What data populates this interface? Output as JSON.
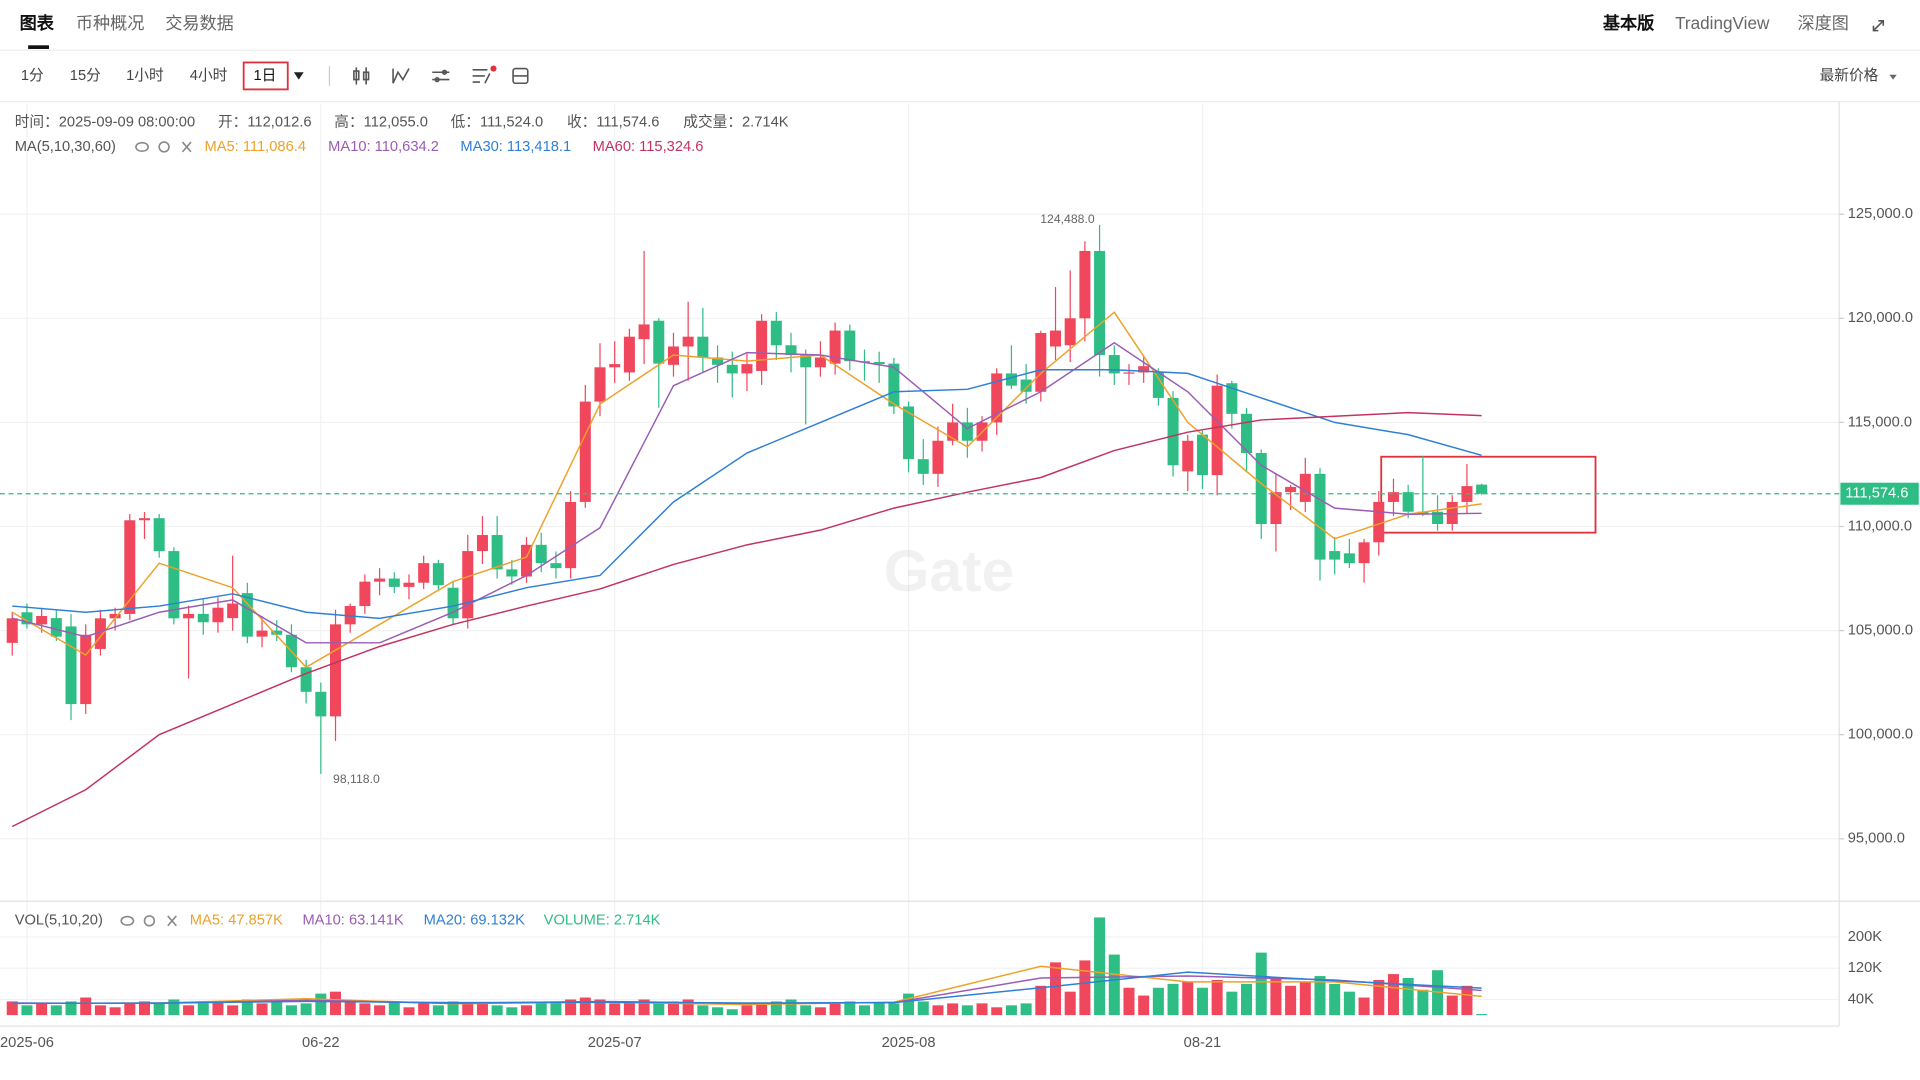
{
  "tabs": [
    "图表",
    "币种概况",
    "交易数据"
  ],
  "views": [
    "基本版",
    "TradingView",
    "深度图"
  ],
  "intervals": [
    "1分",
    "15分",
    "1小时",
    "4小时",
    "1日"
  ],
  "price_mode": "最新价格",
  "chart_data": {
    "type": "candlestick",
    "info": [
      "时间：2025-09-09 08:00:00",
      "开：112,012.6",
      "高：112,055.0",
      "低：111,524.0",
      "收：111,574.6",
      "成交量：2.714K"
    ],
    "indicator": "MA(5,10,30,60)",
    "categories": [
      null,
      "2025-06",
      null,
      null,
      null,
      null,
      null,
      null,
      null,
      null,
      null,
      null,
      null,
      null,
      null,
      null,
      null,
      null,
      null,
      null,
      null,
      "06-22",
      null,
      null,
      null,
      null,
      null,
      null,
      null,
      null,
      null,
      null,
      null,
      null,
      null,
      null,
      null,
      null,
      null,
      null,
      null,
      "2025-07",
      null,
      null,
      null,
      null,
      null,
      null,
      null,
      null,
      null,
      null,
      null,
      null,
      null,
      null,
      null,
      null,
      null,
      null,
      null,
      "2025-08",
      null,
      null,
      null,
      null,
      null,
      null,
      null,
      null,
      null,
      null,
      null,
      null,
      null,
      null,
      null,
      null,
      null,
      null,
      null,
      "08-21",
      null,
      null,
      null,
      null,
      null,
      null,
      null,
      null,
      null,
      null,
      null,
      null,
      null,
      null,
      null,
      null,
      null,
      null,
      null
    ],
    "ohlc": [
      [
        104410,
        105900,
        103800,
        105590
      ],
      [
        105880,
        106300,
        105100,
        105300
      ],
      [
        105300,
        106100,
        104900,
        105700
      ],
      [
        105600,
        106000,
        104500,
        104710
      ],
      [
        105200,
        105800,
        100700,
        101470
      ],
      [
        101470,
        105300,
        101000,
        104800
      ],
      [
        104120,
        106000,
        103800,
        105590
      ],
      [
        105590,
        106100,
        105000,
        105800
      ],
      [
        105800,
        110600,
        105500,
        110300
      ],
      [
        110300,
        110700,
        109400,
        110400
      ],
      [
        110400,
        110600,
        108500,
        108820
      ],
      [
        108820,
        109000,
        105300,
        105590
      ],
      [
        105590,
        106200,
        102700,
        105800
      ],
      [
        105800,
        106500,
        104800,
        105400
      ],
      [
        105400,
        106600,
        104900,
        106100
      ],
      [
        105600,
        108600,
        105000,
        106300
      ],
      [
        106800,
        107300,
        104400,
        104710
      ],
      [
        104710,
        105700,
        104200,
        105000
      ],
      [
        105000,
        105500,
        104500,
        104800
      ],
      [
        104800,
        105300,
        103000,
        103240
      ],
      [
        103240,
        103600,
        101500,
        102060
      ],
      [
        102060,
        102500,
        98118,
        100880
      ],
      [
        100880,
        106000,
        99700,
        105300
      ],
      [
        105300,
        106300,
        104900,
        106180
      ],
      [
        106180,
        107700,
        105800,
        107350
      ],
      [
        107350,
        108000,
        106700,
        107500
      ],
      [
        107500,
        107800,
        106800,
        107100
      ],
      [
        107100,
        107700,
        106500,
        107300
      ],
      [
        107300,
        108600,
        107000,
        108240
      ],
      [
        108240,
        108400,
        106900,
        107180
      ],
      [
        107060,
        107400,
        105300,
        105590
      ],
      [
        105590,
        109600,
        105100,
        108820
      ],
      [
        108820,
        110500,
        108200,
        109590
      ],
      [
        109590,
        110500,
        107500,
        107940
      ],
      [
        107940,
        108400,
        107200,
        107600
      ],
      [
        107600,
        109500,
        107300,
        109120
      ],
      [
        109120,
        109700,
        107800,
        108240
      ],
      [
        108240,
        108800,
        107500,
        108000
      ],
      [
        108000,
        111700,
        107500,
        111180
      ],
      [
        111180,
        116800,
        110900,
        116000
      ],
      [
        116000,
        118800,
        115300,
        117647
      ],
      [
        117647,
        118900,
        116900,
        117800
      ],
      [
        117400,
        119500,
        117000,
        119118
      ],
      [
        119000,
        123235,
        117800,
        119706
      ],
      [
        119883,
        120000,
        115700,
        117824
      ],
      [
        117765,
        119300,
        117200,
        118647
      ],
      [
        118647,
        120800,
        117000,
        119118
      ],
      [
        119118,
        120500,
        117400,
        118118
      ],
      [
        118118,
        118700,
        116900,
        117765
      ],
      [
        117765,
        118400,
        116200,
        117353
      ],
      [
        117353,
        118300,
        116500,
        117800
      ],
      [
        117471,
        120200,
        116800,
        119883
      ],
      [
        119883,
        120300,
        118000,
        118706
      ],
      [
        118706,
        119300,
        117400,
        118235
      ],
      [
        118235,
        118500,
        114900,
        117647
      ],
      [
        117647,
        118900,
        117200,
        118118
      ],
      [
        117824,
        119800,
        117300,
        119412
      ],
      [
        119412,
        119700,
        117500,
        117941
      ],
      [
        117941,
        118500,
        117000,
        117900
      ],
      [
        117900,
        118400,
        116900,
        117800
      ],
      [
        117824,
        118100,
        115400,
        115765
      ],
      [
        115765,
        116000,
        112600,
        113235
      ],
      [
        113235,
        114200,
        112000,
        112530
      ],
      [
        112530,
        114800,
        111900,
        114118
      ],
      [
        114118,
        115900,
        113900,
        115000
      ],
      [
        115000,
        115700,
        113300,
        114118
      ],
      [
        114118,
        115300,
        113600,
        115000
      ],
      [
        115000,
        117600,
        114400,
        117353
      ],
      [
        117353,
        118700,
        116600,
        116765
      ],
      [
        117059,
        117800,
        115900,
        116471
      ],
      [
        116471,
        119400,
        116000,
        119294
      ],
      [
        118647,
        121500,
        118000,
        119412
      ],
      [
        118706,
        122300,
        117900,
        120000
      ],
      [
        120000,
        123700,
        118900,
        123235
      ],
      [
        123235,
        124488,
        117200,
        118235
      ],
      [
        118235,
        118700,
        116800,
        117353
      ],
      [
        117353,
        117800,
        116800,
        117400
      ],
      [
        117400,
        118200,
        116900,
        117700
      ],
      [
        117400,
        117600,
        115800,
        116176
      ],
      [
        116176,
        116500,
        112400,
        112941
      ],
      [
        112647,
        114400,
        111700,
        114118
      ],
      [
        114412,
        114600,
        111800,
        112470
      ],
      [
        112470,
        117300,
        111500,
        116765
      ],
      [
        116882,
        117000,
        114700,
        115412
      ],
      [
        115412,
        115700,
        112600,
        113530
      ],
      [
        113530,
        113700,
        109400,
        110120
      ],
      [
        110120,
        112500,
        108800,
        111650
      ],
      [
        111650,
        112000,
        110800,
        111900
      ],
      [
        111180,
        113300,
        110700,
        112530
      ],
      [
        112530,
        112800,
        107400,
        108410
      ],
      [
        108820,
        109500,
        107700,
        108410
      ],
      [
        108710,
        109400,
        108000,
        108240
      ],
      [
        108240,
        109400,
        107300,
        109240
      ],
      [
        109240,
        111700,
        108600,
        111180
      ],
      [
        111180,
        112300,
        110500,
        111650
      ],
      [
        111650,
        112000,
        110400,
        110710
      ],
      [
        110710,
        113400,
        110500,
        110600
      ],
      [
        110710,
        111500,
        109800,
        110120
      ],
      [
        110120,
        111500,
        109800,
        111180
      ],
      [
        111180,
        113000,
        110600,
        111940
      ],
      [
        112012.6,
        112055.0,
        111524.0,
        111574.6
      ]
    ],
    "up_color": "#f0475c",
    "down_color": "#2ebd85",
    "ylim": [
      92060,
      130290
    ],
    "yticks": [
      {
        "value": 95000,
        "label": "95,000.0"
      },
      {
        "value": 100000,
        "label": "100,000.0"
      },
      {
        "value": 105000,
        "label": "105,000.0"
      },
      {
        "value": 110000,
        "label": "110,000.0"
      },
      {
        "value": 115000,
        "label": "115,000.0"
      },
      {
        "value": 120000,
        "label": "120,000.0"
      },
      {
        "value": 125000,
        "label": "125,000.0"
      }
    ],
    "grid": true,
    "max_label": "124,488.0",
    "min_label": "98,118.0",
    "last_price": {
      "value": 111574.6,
      "label": "111,574.6"
    },
    "watermark": "Gate",
    "series": [
      {
        "name": "MA5: 111,086.4",
        "color": "#eea12a",
        "x": [
          0,
          5,
          10,
          15,
          20,
          25,
          30,
          35,
          40,
          45,
          50,
          55,
          60,
          65,
          70,
          75,
          80,
          85,
          90,
          95,
          100
        ],
        "values": [
          105883,
          103824,
          108236,
          107060,
          103237,
          105296,
          107354,
          108530,
          115883,
          118236,
          117942,
          118236,
          115883,
          113824,
          117354,
          120295,
          115000,
          112060,
          109413,
          110590,
          111086.4
        ]
      },
      {
        "name": "MA10: 110,634.2",
        "color": "#9a5cb4",
        "x": [
          0,
          5,
          10,
          15,
          20,
          25,
          30,
          35,
          40,
          45,
          50,
          55,
          60,
          65,
          70,
          75,
          80,
          85,
          90,
          95,
          100
        ],
        "values": [
          105589,
          104707,
          105883,
          106472,
          104413,
          104413,
          105883,
          107648,
          109941,
          116765,
          118354,
          118236,
          117648,
          114707,
          116471,
          118824,
          116471,
          112943,
          110884,
          110590,
          110634.2
        ]
      },
      {
        "name": "MA30: 113,418.1",
        "color": "#2f7fd6",
        "x": [
          0,
          5,
          10,
          15,
          20,
          25,
          30,
          35,
          40,
          45,
          50,
          55,
          60,
          65,
          70,
          75,
          80,
          85,
          90,
          95,
          100
        ],
        "values": [
          106178,
          105883,
          106178,
          106766,
          105883,
          105589,
          106178,
          107060,
          107648,
          111178,
          113530,
          115000,
          116471,
          116589,
          117530,
          117530,
          117354,
          116177,
          115000,
          114412,
          113418.1
        ]
      },
      {
        "name": "MA60: 115,324.6",
        "color": "#c2335f",
        "x": [
          0,
          5,
          10,
          15,
          20,
          25,
          30,
          35,
          40,
          45,
          50,
          55,
          60,
          65,
          70,
          75,
          80,
          85,
          90,
          95,
          100
        ],
        "values": [
          95590,
          97355,
          100002,
          101472,
          102943,
          104237,
          105296,
          106178,
          107001,
          108178,
          109119,
          109825,
          110884,
          111648,
          112354,
          113648,
          114531,
          115119,
          115295,
          115472,
          115324.6
        ]
      }
    ],
    "volume": {
      "indicator": "VOL(5,10,20)",
      "label": "VOLUME: 2.714K",
      "values": [
        35,
        25,
        30,
        25,
        35,
        45,
        25,
        20,
        30,
        35,
        30,
        40,
        25,
        30,
        35,
        25,
        40,
        30,
        35,
        25,
        30,
        55,
        60,
        35,
        30,
        25,
        35,
        20,
        30,
        25,
        35,
        30,
        30,
        25,
        20,
        25,
        30,
        35,
        40,
        45,
        40,
        30,
        35,
        40,
        30,
        35,
        40,
        25,
        20,
        15,
        25,
        30,
        35,
        40,
        25,
        20,
        30,
        35,
        25,
        30,
        30,
        55,
        35,
        25,
        30,
        25,
        30,
        20,
        25,
        30,
        75,
        135,
        60,
        140,
        250,
        155,
        70,
        50,
        70,
        80,
        85,
        70,
        90,
        60,
        80,
        160,
        95,
        75,
        85,
        100,
        80,
        60,
        45,
        90,
        105,
        95,
        65,
        115,
        50,
        75,
        2.714
      ],
      "ylim": [
        0,
        279
      ],
      "yticks": [
        {
          "value": 40,
          "label": "40K"
        },
        {
          "value": 120,
          "label": "120K"
        },
        {
          "value": 200,
          "label": "200K"
        }
      ],
      "series": [
        {
          "name": "MA5: 47.857K",
          "color": "#eea12a",
          "x": [
            0,
            10,
            20,
            30,
            40,
            50,
            60,
            70,
            80,
            90,
            100
          ],
          "values": [
            30,
            31,
            42,
            29,
            33,
            27,
            33,
            125,
            85,
            85,
            47.857
          ]
        },
        {
          "name": "MA10: 63.141K",
          "color": "#9a5cb4",
          "x": [
            0,
            10,
            20,
            30,
            40,
            50,
            60,
            70,
            80,
            90,
            100
          ],
          "values": [
            31,
            30,
            38,
            30,
            35,
            30,
            32,
            95,
            100,
            90,
            63.141
          ]
        },
        {
          "name": "MA20: 69.132K",
          "color": "#2f7fd6",
          "x": [
            0,
            10,
            20,
            30,
            40,
            50,
            60,
            70,
            80,
            90,
            100
          ],
          "values": [
            30,
            31,
            35,
            32,
            33,
            31,
            32,
            70,
            110,
            88,
            69.132
          ]
        }
      ]
    }
  }
}
